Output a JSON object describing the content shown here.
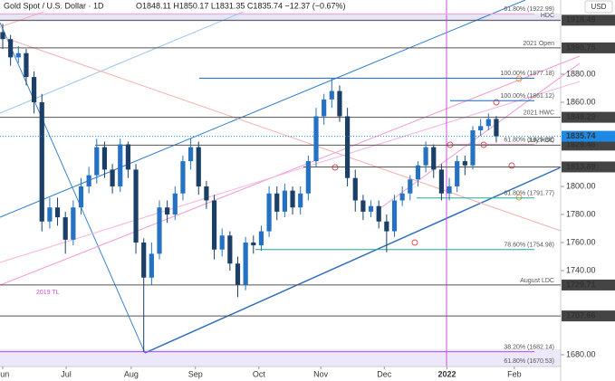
{
  "chart_data": {
    "type": "candlestick",
    "symbol": "Gold Spot / U.S. Dollar · 1D",
    "ohlc_header": "O1848.11 H1850.17 L1831.35 C1835.74 −12.37 (−0.67%)",
    "currency": "USD",
    "up_color": "#2672c2",
    "down_color": "#1b3f66",
    "opens": [
      1910,
      1905,
      1892,
      1895,
      1878,
      1860,
      1775,
      1785,
      1778,
      1762,
      1785,
      1800,
      1808,
      1828,
      1812,
      1800,
      1830,
      1812,
      1760,
      1735,
      1752,
      1785,
      1780,
      1795,
      1818,
      1828,
      1800,
      1790,
      1755,
      1765,
      1745,
      1730,
      1760,
      1758,
      1768,
      1795,
      1782,
      1797,
      1785,
      1795,
      1818,
      1850,
      1862,
      1868,
      1850,
      1806,
      1790,
      1782,
      1786,
      1775,
      1768,
      1790,
      1795,
      1805,
      1815,
      1828,
      1812,
      1795,
      1800,
      1818,
      1815,
      1840,
      1843,
      1848.11
    ],
    "highs": [
      1916,
      1908,
      1900,
      1898,
      1882,
      1866,
      1792,
      1792,
      1782,
      1790,
      1806,
      1814,
      1834,
      1832,
      1816,
      1834,
      1832,
      1816,
      1763,
      1760,
      1790,
      1790,
      1800,
      1822,
      1834,
      1832,
      1804,
      1794,
      1770,
      1768,
      1750,
      1764,
      1765,
      1772,
      1800,
      1800,
      1802,
      1800,
      1800,
      1822,
      1856,
      1866,
      1877,
      1872,
      1856,
      1812,
      1794,
      1790,
      1790,
      1780,
      1794,
      1800,
      1808,
      1818,
      1832,
      1830,
      1816,
      1806,
      1822,
      1822,
      1843,
      1848,
      1852,
      1850.17
    ],
    "lows": [
      1898,
      1886,
      1888,
      1872,
      1852,
      1768,
      1770,
      1772,
      1752,
      1758,
      1780,
      1795,
      1802,
      1806,
      1795,
      1796,
      1806,
      1752,
      1682,
      1730,
      1748,
      1774,
      1776,
      1790,
      1812,
      1794,
      1784,
      1748,
      1750,
      1740,
      1721,
      1726,
      1752,
      1754,
      1764,
      1776,
      1778,
      1780,
      1780,
      1790,
      1814,
      1844,
      1856,
      1846,
      1800,
      1782,
      1776,
      1778,
      1770,
      1753,
      1764,
      1786,
      1790,
      1800,
      1810,
      1806,
      1790,
      1790,
      1796,
      1808,
      1812,
      1836,
      1840,
      1831.35
    ],
    "closes": [
      1905,
      1892,
      1895,
      1878,
      1860,
      1775,
      1785,
      1778,
      1762,
      1785,
      1800,
      1808,
      1828,
      1812,
      1800,
      1830,
      1812,
      1760,
      1735,
      1752,
      1785,
      1780,
      1795,
      1818,
      1828,
      1800,
      1790,
      1755,
      1765,
      1745,
      1730,
      1760,
      1758,
      1768,
      1795,
      1782,
      1797,
      1785,
      1795,
      1818,
      1850,
      1862,
      1868,
      1850,
      1806,
      1790,
      1782,
      1786,
      1775,
      1768,
      1790,
      1795,
      1805,
      1815,
      1828,
      1812,
      1795,
      1800,
      1818,
      1815,
      1840,
      1843,
      1848,
      1835.74
    ],
    "xlim": [
      0,
      70
    ],
    "xticks": [
      {
        "value": 0,
        "label": "Jun"
      },
      {
        "value": 8.1,
        "label": "Jul"
      },
      {
        "value": 16.4,
        "label": "Aug"
      },
      {
        "value": 24.6,
        "label": "Sep"
      },
      {
        "value": 32.7,
        "label": "Oct"
      },
      {
        "value": 40.6,
        "label": "Nov"
      },
      {
        "value": 48.7,
        "label": "Dec"
      },
      {
        "value": 56.7,
        "label": "2022"
      },
      {
        "value": 65.3,
        "label": "Feb"
      }
    ],
    "ylim": [
      1671.6,
      1932.9
    ],
    "yticks": [
      {
        "value": 1680,
        "label": "1680.00"
      },
      {
        "value": 1740,
        "label": "1740.00"
      },
      {
        "value": 1760,
        "label": "1760.00"
      },
      {
        "value": 1780,
        "label": "1780.00"
      },
      {
        "value": 1800,
        "label": "1800.00"
      },
      {
        "value": 1860,
        "label": "1860.00"
      },
      {
        "value": 1880,
        "label": "1880.00"
      }
    ],
    "levels": [
      {
        "value": 1918.49,
        "label": "HDC"
      },
      {
        "value": 1898.75,
        "label": "2021 Open"
      },
      {
        "value": 1849.29,
        "label": "2021 HWC"
      },
      {
        "value": 1829.46,
        "label": "July HDC"
      },
      {
        "value": 1813.89
      },
      {
        "value": 1729.71,
        "label": "August LDC"
      },
      {
        "value": 1707.66
      }
    ],
    "fib_levels": [
      {
        "value": 1922.99,
        "label": "61.80% (1922.99)"
      },
      {
        "value": 1877.18,
        "label": "100.00% (1877.18)"
      },
      {
        "value": 1861.12,
        "label": "100.00% (1861.12)"
      },
      {
        "value": 1829.88,
        "label": "61.80% (1829.88)"
      },
      {
        "value": 1791.77,
        "label": "61.80% (1791.77)"
      },
      {
        "value": 1754.98,
        "label": "78.60% (1754.98)"
      },
      {
        "value": 1682.14,
        "label": "38.20% (1682.14)"
      },
      {
        "value": 1670.53,
        "label": "61.80% (1670.53)"
      }
    ],
    "trendline_label": "2019 TL"
  }
}
